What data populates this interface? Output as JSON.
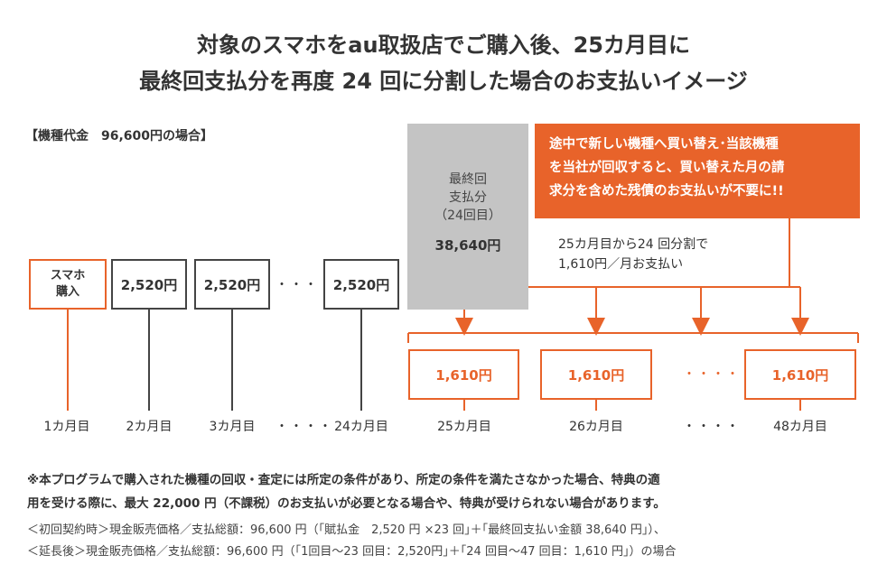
{
  "title": {
    "line1": "対象のスマホをau取扱店でご購入後、25カ月目に",
    "line2": "最終回支払分を再度 24 回に分割した場合のお支払いイメージ"
  },
  "price_label": "【機種代金　96,600円の場合】",
  "purchase_box": {
    "line1": "スマホ",
    "line2": "購入"
  },
  "first_payments": [
    "2,520円",
    "2,520円",
    "2,520円"
  ],
  "ellipsis": "・・・・",
  "final_panel": {
    "line1": "最終回",
    "line2": "支払分",
    "line3": "（24回目）",
    "amount": "38,640円"
  },
  "callout": {
    "line1": "途中で新しい機種へ買い替え･当該機種",
    "line2": "を当社が回収すると、買い替えた月の請",
    "line3": "求分を含めた残債のお支払いが不要に!!"
  },
  "split_note": {
    "line1": "25カ月目から24 回分割で",
    "line2": "1,610円／月お支払い"
  },
  "second_payments": [
    "1,610円",
    "1,610円",
    "1,610円"
  ],
  "months": [
    "1カ月目",
    "2カ月目",
    "3カ月目",
    "24カ月目",
    "25カ月目",
    "26カ月目",
    "48カ月目"
  ],
  "notes": {
    "bold1": "※本プログラムで購入された機種の回収・査定には所定の条件があり、所定の条件を満たさなかった場合、特典の適",
    "bold2": "用を受ける際に、最大 22,000 円（不課税）のお支払いが必要となる場合や、特典が受けられない場合があります。",
    "line3": "＜初回契約時＞現金販売価格／支払総額：96,600 円（｢賦払金　2,520 円 ×23 回｣＋｢最終回支払い金額 38,640 円｣）、",
    "line4": "＜延長後＞現金販売価格／支払総額：96,600 円（｢1回目～23 回目：2,520円｣＋｢24 回目～47 回目：1,610 円｣）の場合"
  },
  "colors": {
    "accent": "#e8632a",
    "grey_panel": "#c4c4c4",
    "text": "#333333"
  }
}
